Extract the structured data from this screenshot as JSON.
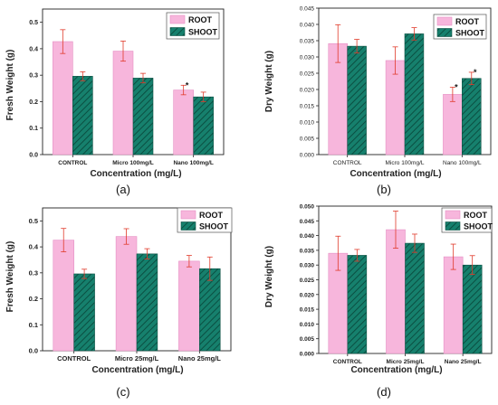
{
  "chart_data": [
    {
      "type": "bar",
      "panel_label": "(a)",
      "categories": [
        "CONTROL",
        "Micro 100mg/L",
        "Nano 100mg/L"
      ],
      "series": [
        {
          "name": "ROOT",
          "values": [
            0.427,
            0.391,
            0.244
          ],
          "errors": [
            0.045,
            0.038,
            0.018
          ]
        },
        {
          "name": "SHOOT",
          "values": [
            0.296,
            0.289,
            0.218
          ],
          "errors": [
            0.017,
            0.018,
            0.018
          ]
        }
      ],
      "xlabel": "Concentration (mg/L)",
      "ylabel": "Fresh Weight (g)",
      "ylim": [
        0,
        0.55
      ],
      "yticks": [
        0.0,
        0.1,
        0.2,
        0.3,
        0.4,
        0.5
      ],
      "tick_labels": [
        "0.0",
        "0.1",
        "0.2",
        "0.3",
        "0.4",
        "0.5"
      ],
      "annotations": [
        {
          "series": 0,
          "index": 2,
          "text": "*"
        }
      ],
      "legend": "top-right"
    },
    {
      "type": "bar",
      "panel_label": "(b)",
      "categories": [
        "CONTROL",
        "Micro 100mg/L",
        "Nano 100mg/L"
      ],
      "series": [
        {
          "name": "ROOT",
          "values": [
            0.0341,
            0.0289,
            0.0185
          ],
          "errors": [
            0.0058,
            0.0042,
            0.0022
          ]
        },
        {
          "name": "SHOOT",
          "values": [
            0.0333,
            0.0371,
            0.0234
          ],
          "errors": [
            0.0021,
            0.0019,
            0.0019
          ]
        }
      ],
      "xlabel": "Concentration (mg/L)",
      "ylabel": "Dry Weight (g)",
      "ylim": [
        0,
        0.045
      ],
      "yticks": [
        0,
        0.005,
        0.01,
        0.015,
        0.02,
        0.025,
        0.03,
        0.035,
        0.04,
        0.045
      ],
      "tick_labels": [
        "0.000",
        "0.005",
        "0.010",
        "0.015",
        "0.020",
        "0.025",
        "0.030",
        "0.035",
        "0.040",
        "0.045"
      ],
      "annotations": [
        {
          "series": 0,
          "index": 2,
          "text": "*"
        },
        {
          "series": 1,
          "index": 2,
          "text": "*"
        }
      ],
      "legend": "top-right"
    },
    {
      "type": "bar",
      "panel_label": "(c)",
      "categories": [
        "CONTROL",
        "Micro 25mg/L",
        "Nano 25mg/L"
      ],
      "series": [
        {
          "name": "ROOT",
          "values": [
            0.426,
            0.44,
            0.345
          ],
          "errors": [
            0.045,
            0.03,
            0.022
          ]
        },
        {
          "name": "SHOOT",
          "values": [
            0.296,
            0.373,
            0.316
          ],
          "errors": [
            0.018,
            0.02,
            0.045
          ]
        }
      ],
      "xlabel": "Concentration (mg/L)",
      "ylabel": "Fresh Weight (g)",
      "ylim": [
        0,
        0.55
      ],
      "yticks": [
        0.0,
        0.1,
        0.2,
        0.3,
        0.4,
        0.5
      ],
      "tick_labels": [
        "0.0",
        "0.1",
        "0.2",
        "0.3",
        "0.4",
        "0.5"
      ],
      "annotations": [],
      "legend": "top-right"
    },
    {
      "type": "bar",
      "panel_label": "(d)",
      "categories": [
        "CONTROL",
        "Micro 25mg/L",
        "Nano 25mg/L"
      ],
      "series": [
        {
          "name": "ROOT",
          "values": [
            0.034,
            0.042,
            0.0328
          ],
          "errors": [
            0.0058,
            0.0063,
            0.0043
          ]
        },
        {
          "name": "SHOOT",
          "values": [
            0.0333,
            0.0374,
            0.03
          ],
          "errors": [
            0.002,
            0.0031,
            0.0032
          ]
        }
      ],
      "xlabel": "Concentration (mg/L)",
      "ylabel": "Dry Weight (g)",
      "ylim": [
        0,
        0.05
      ],
      "yticks": [
        0,
        0.005,
        0.01,
        0.015,
        0.02,
        0.025,
        0.03,
        0.035,
        0.04,
        0.045,
        0.05
      ],
      "tick_labels": [
        "0.000",
        "0.005",
        "0.010",
        "0.015",
        "0.020",
        "0.025",
        "0.030",
        "0.035",
        "0.040",
        "0.045",
        "0.050"
      ],
      "annotations": [],
      "legend": "top-right"
    }
  ],
  "colors": {
    "root_fill": "#f7b6dc",
    "root_edge": "#e58fc4",
    "shoot_fill": "#16806d",
    "shoot_hatch": "#0b4f42",
    "error_bar": "#e03a2a",
    "axis": "#222222",
    "star": "#1a1a1a"
  }
}
